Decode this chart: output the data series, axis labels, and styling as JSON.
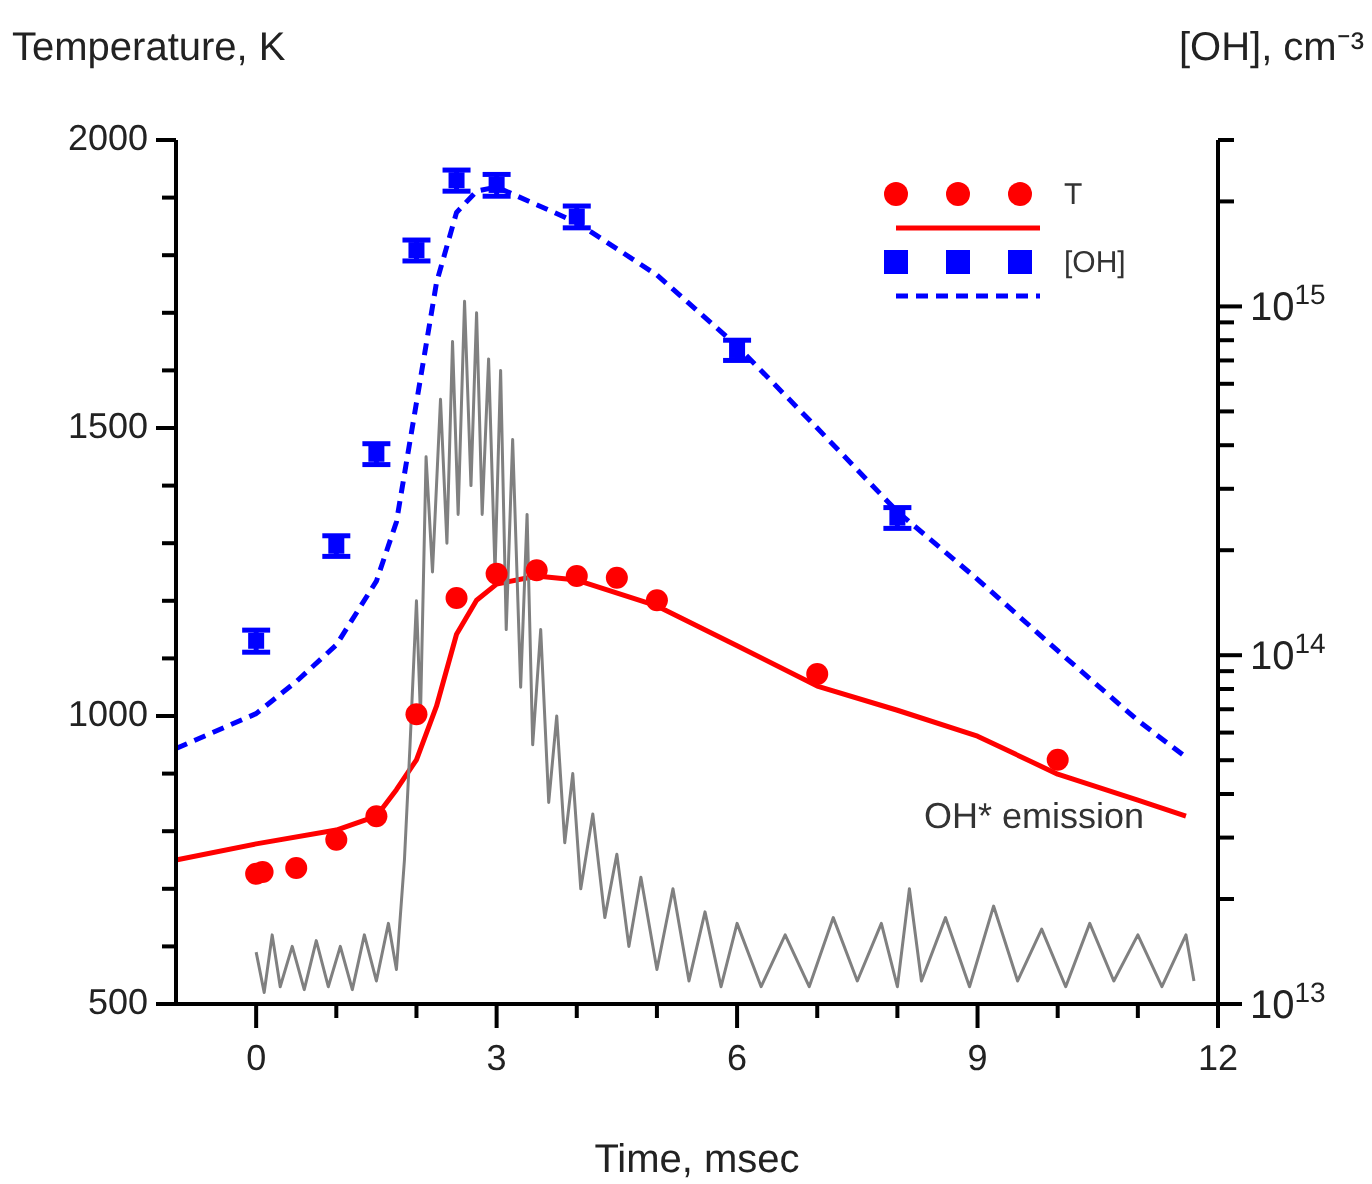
{
  "chart_data": {
    "type": "scatter",
    "xlabel": "Time, msec",
    "ylabel": "Temperature, K",
    "y2label": "[OH], cm⁻³",
    "xlim": [
      -1,
      12
    ],
    "xticks": [
      0,
      {
        "value": 1,
        "label": null
      },
      {
        "value": 2,
        "label": null
      },
      3,
      {
        "value": 4,
        "label": null
      },
      {
        "value": 5,
        "label": null
      },
      6,
      {
        "value": 7,
        "label": null
      },
      {
        "value": 8,
        "label": null
      },
      9,
      {
        "value": 10,
        "label": null
      },
      {
        "value": 11,
        "label": null
      },
      12
    ],
    "ylim": [
      500,
      2000
    ],
    "yticks": [
      500,
      {
        "value": 600,
        "label": null
      },
      {
        "value": 700,
        "label": null
      },
      {
        "value": 800,
        "label": null
      },
      {
        "value": 900,
        "label": null
      },
      1000,
      {
        "value": 1100,
        "label": null
      },
      {
        "value": 1200,
        "label": null
      },
      {
        "value": 1300,
        "label": null
      },
      {
        "value": 1400,
        "label": null
      },
      1500,
      {
        "value": 1600,
        "label": null
      },
      {
        "value": 1700,
        "label": null
      },
      {
        "value": 1800,
        "label": null
      },
      {
        "value": 1900,
        "label": null
      },
      2000
    ],
    "y2lim": [
      10000000000000.0,
      3000000000000000.0
    ],
    "y2ticks": [
      {
        "value": 10000000000000.0,
        "label": "10$^{13}$"
      },
      {
        "value": 20000000000000.0,
        "label": null
      },
      {
        "value": 30000000000000.0,
        "label": null
      },
      {
        "value": 40000000000000.0,
        "label": null
      },
      {
        "value": 50000000000000.0,
        "label": null
      },
      {
        "value": 60000000000000.0,
        "label": null
      },
      {
        "value": 70000000000000.0,
        "label": null
      },
      {
        "value": 80000000000000.0,
        "label": null
      },
      {
        "value": 90000000000000.0,
        "label": null
      },
      {
        "value": 100000000000000.0,
        "label": "10$^{14}$"
      },
      {
        "value": 200000000000000.0,
        "label": null
      },
      {
        "value": 300000000000000.0,
        "label": null
      },
      {
        "value": 400000000000000.0,
        "label": null
      },
      {
        "value": 500000000000000.0,
        "label": null
      },
      {
        "value": 600000000000000.0,
        "label": null
      },
      {
        "value": 700000000000000.0,
        "label": null
      },
      {
        "value": 800000000000000.0,
        "label": null
      },
      {
        "value": 900000000000000.0,
        "label": null
      },
      {
        "value": 1000000000000000.0,
        "label": "10$^{15}$"
      },
      {
        "value": 2000000000000000.0,
        "label": null
      },
      {
        "value": 3000000000000000.0,
        "label": null
      }
    ],
    "log": "y2",
    "grid": false,
    "legend": "top right",
    "series": [
      {
        "name": "T",
        "marker": "circle",
        "color": "#ff0000",
        "x": [
          0,
          0.08,
          0.5,
          1,
          1.5,
          2,
          2.5,
          3,
          3.5,
          4,
          4.5,
          5,
          7,
          10
        ],
        "values": [
          726,
          729,
          736,
          785,
          826,
          1003,
          1205,
          1247,
          1253,
          1243,
          1240,
          1201,
          1073,
          924
        ]
      },
      {
        "type": "line",
        "line_style": "solid",
        "color": "#ff0000",
        "x": [
          -1,
          0,
          1,
          1.5,
          1.75,
          2,
          2.25,
          2.5,
          2.75,
          3,
          3.5,
          4,
          5,
          6,
          7,
          8,
          9,
          10,
          11,
          11.6
        ],
        "values": [
          750,
          778,
          802,
          826,
          872,
          924,
          1017,
          1142,
          1201,
          1229,
          1243,
          1236,
          1191,
          1122,
          1052,
          1010,
          965,
          899,
          854,
          826
        ]
      },
      {
        "name": "[OH]",
        "marker": "square",
        "axis": "y2",
        "color": "#0000ff",
        "x": [
          0,
          1,
          1.5,
          2,
          2.5,
          3,
          4,
          6,
          8
        ],
        "values": [
          110000000000000.0,
          206000000000000.0,
          378000000000000.0,
          1450000000000000.0,
          2300000000000000.0,
          2230000000000000.0,
          1810000000000000.0,
          750000000000000.0,
          248000000000000.0
        ],
        "errors": [
          8000000000000.0,
          14000000000000.0,
          26000000000000.0,
          100000000000000.0,
          160000000000000.0,
          160000000000000.0,
          130000000000000.0,
          50000000000000.0,
          17000000000000.0
        ]
      },
      {
        "type": "line",
        "line_style": "dashed",
        "axis": "y2",
        "color": "#0000ff",
        "x": [
          -1,
          0,
          0.5,
          1,
          1.5,
          1.75,
          2,
          2.25,
          2.5,
          2.75,
          3,
          4,
          5,
          6,
          7,
          8,
          9,
          10,
          11,
          11.6
        ],
        "values": [
          54000000000000.0,
          68000000000000.0,
          84000000000000.0,
          107000000000000.0,
          163000000000000.0,
          241000000000000.0,
          530000000000000.0,
          1170000000000000.0,
          1860000000000000.0,
          2140000000000000.0,
          2200000000000000.0,
          1740000000000000.0,
          1230000000000000.0,
          770000000000000.0,
          448000000000000.0,
          258000000000000.0,
          165000000000000.0,
          103000000000000.0,
          65000000000000.0,
          51000000000000.0
        ]
      },
      {
        "name": "OH* emission",
        "type": "line",
        "line_style": "solid",
        "color": "#808080",
        "x": [
          0,
          0.1,
          0.2,
          0.3,
          0.45,
          0.6,
          0.75,
          0.9,
          1.05,
          1.2,
          1.35,
          1.5,
          1.65,
          1.75,
          1.85,
          1.92,
          2,
          2.05,
          2.12,
          2.2,
          2.3,
          2.38,
          2.45,
          2.52,
          2.6,
          2.68,
          2.75,
          2.82,
          2.9,
          2.98,
          3.05,
          3.12,
          3.2,
          3.3,
          3.38,
          3.45,
          3.55,
          3.65,
          3.75,
          3.85,
          3.95,
          4.05,
          4.2,
          4.35,
          4.5,
          4.65,
          4.8,
          5,
          5.2,
          5.4,
          5.6,
          5.8,
          6,
          6.3,
          6.6,
          6.9,
          7.2,
          7.5,
          7.8,
          8,
          8.15,
          8.3,
          8.6,
          8.9,
          9.2,
          9.5,
          9.8,
          10.1,
          10.4,
          10.7,
          11,
          11.3,
          11.6,
          11.7
        ],
        "values": [
          590,
          520,
          620,
          530,
          600,
          525,
          610,
          530,
          600,
          525,
          620,
          540,
          640,
          560,
          750,
          950,
          1200,
          1000,
          1450,
          1250,
          1550,
          1300,
          1650,
          1350,
          1720,
          1400,
          1700,
          1350,
          1620,
          1250,
          1600,
          1150,
          1480,
          1050,
          1350,
          950,
          1150,
          850,
          1000,
          780,
          900,
          700,
          830,
          650,
          760,
          600,
          720,
          560,
          700,
          540,
          660,
          530,
          640,
          530,
          620,
          530,
          650,
          540,
          640,
          530,
          700,
          540,
          650,
          530,
          670,
          540,
          630,
          530,
          640,
          540,
          620,
          530,
          620,
          540
        ]
      }
    ]
  }
}
